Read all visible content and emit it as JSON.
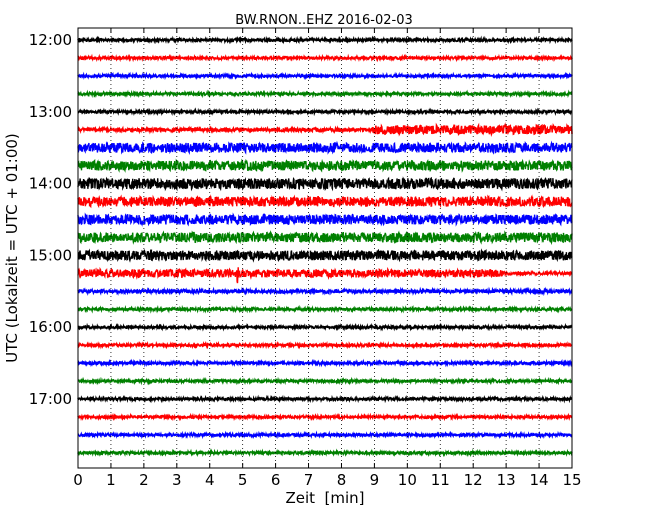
{
  "chart_data": {
    "type": "line",
    "title": "BW.RNON..EHZ 2016-02-03",
    "xlabel": "Zeit  [min]",
    "ylabel": "UTC (Lokalzeit = UTC + 01:00)",
    "xlim": [
      0,
      15
    ],
    "x_ticks": [
      "0",
      "1",
      "2",
      "3",
      "4",
      "5",
      "6",
      "7",
      "8",
      "9",
      "10",
      "11",
      "12",
      "13",
      "14",
      "15"
    ],
    "y_ticks": [
      "12:00",
      "13:00",
      "14:00",
      "15:00",
      "16:00",
      "17:00"
    ],
    "grid": "vertical dotted lines at each minute",
    "trace_colors": [
      "#000000",
      "#ff0000",
      "#0000ff",
      "#008000"
    ],
    "trace_interval_min": 15,
    "series": [
      {
        "start": "12:00",
        "color": "#000000",
        "amplitude": 0.15
      },
      {
        "start": "12:15",
        "color": "#ff0000",
        "amplitude": 0.15
      },
      {
        "start": "12:30",
        "color": "#0000ff",
        "amplitude": 0.15
      },
      {
        "start": "12:45",
        "color": "#008000",
        "amplitude": 0.15
      },
      {
        "start": "13:00",
        "color": "#000000",
        "amplitude": 0.15
      },
      {
        "start": "13:15",
        "color": "#ff0000",
        "amplitude": 0.2,
        "burst_from_min": 9.0,
        "burst_amplitude": 0.5
      },
      {
        "start": "13:30",
        "color": "#0000ff",
        "amplitude": 0.55
      },
      {
        "start": "13:45",
        "color": "#008000",
        "amplitude": 0.55
      },
      {
        "start": "14:00",
        "color": "#000000",
        "amplitude": 0.6
      },
      {
        "start": "14:15",
        "color": "#ff0000",
        "amplitude": 0.55
      },
      {
        "start": "14:30",
        "color": "#0000ff",
        "amplitude": 0.55
      },
      {
        "start": "14:45",
        "color": "#008000",
        "amplitude": 0.55
      },
      {
        "start": "15:00",
        "color": "#000000",
        "amplitude": 0.55
      },
      {
        "start": "15:15",
        "color": "#ff0000",
        "amplitude": 0.45,
        "spike_min": 4.85,
        "spike_amplitude": 1.2,
        "event_min": 12.5,
        "event_amplitude": 0.6
      },
      {
        "start": "15:30",
        "color": "#0000ff",
        "amplitude": 0.2
      },
      {
        "start": "15:45",
        "color": "#008000",
        "amplitude": 0.15
      },
      {
        "start": "16:00",
        "color": "#000000",
        "amplitude": 0.15
      },
      {
        "start": "16:15",
        "color": "#ff0000",
        "amplitude": 0.15
      },
      {
        "start": "16:30",
        "color": "#0000ff",
        "amplitude": 0.15
      },
      {
        "start": "16:45",
        "color": "#008000",
        "amplitude": 0.15
      },
      {
        "start": "17:00",
        "color": "#000000",
        "amplitude": 0.15
      },
      {
        "start": "17:15",
        "color": "#ff0000",
        "amplitude": 0.15
      },
      {
        "start": "17:30",
        "color": "#0000ff",
        "amplitude": 0.15
      },
      {
        "start": "17:45",
        "color": "#008000",
        "amplitude": 0.15
      }
    ]
  }
}
